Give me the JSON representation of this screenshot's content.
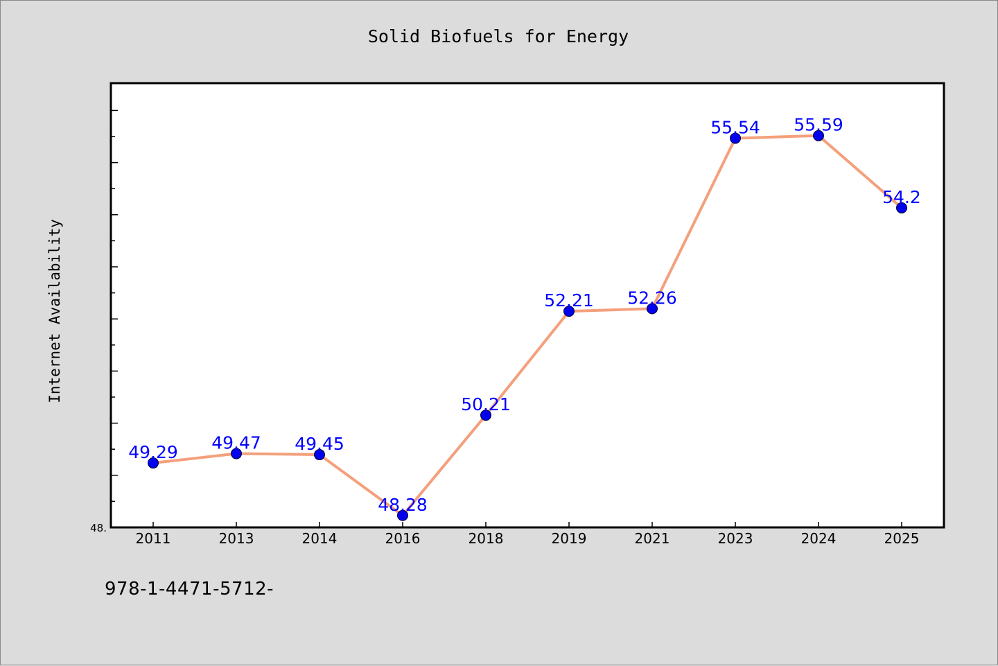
{
  "chart_data": {
    "type": "line",
    "title": "Solid Biofuels for Energy",
    "xlabel": "",
    "ylabel": "Internet Availability",
    "categories": [
      "2011",
      "2013",
      "2014",
      "2016",
      "2018",
      "2019",
      "2021",
      "2023",
      "2024",
      "2025"
    ],
    "series": [
      {
        "values": [
          49.29,
          49.47,
          49.45,
          48.28,
          50.21,
          52.21,
          52.26,
          55.54,
          55.59,
          54.2
        ],
        "labels": [
          "49.29",
          "49.47",
          "49.45",
          "48.28",
          "50.21",
          "52.21",
          "52.26",
          "55.54",
          "55.59",
          "54.2"
        ],
        "line_color": "#f4a07c",
        "marker_color": "#0000ee",
        "label_color": "#0000ff"
      }
    ],
    "ylim": [
      48.05,
      56.6
    ],
    "y_tick_label": "48.",
    "grid": false,
    "legend": "none"
  },
  "footer": {
    "code": "978-1-4471-5712-"
  }
}
